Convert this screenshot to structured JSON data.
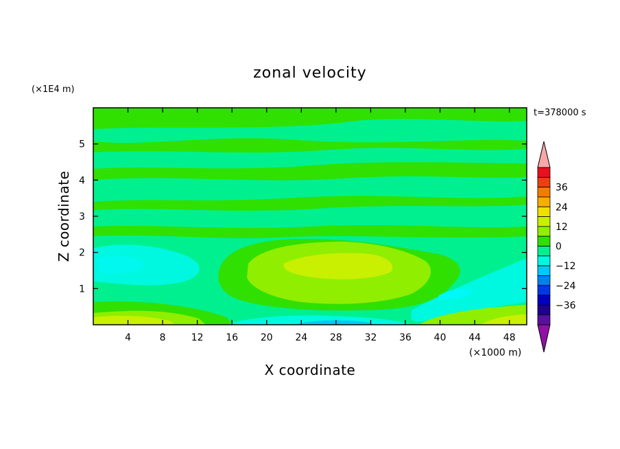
{
  "chart_data": {
    "type": "contour",
    "title": "zonal velocity",
    "xlabel": "X coordinate",
    "ylabel": "Z coordinate",
    "x_units": "(×1000 m)",
    "y_units": "(×1E4 m)",
    "time_label": "t=378000 s",
    "xlim": [
      0,
      50
    ],
    "ylim": [
      0,
      6
    ],
    "x_ticks": [
      4,
      8,
      12,
      16,
      20,
      24,
      28,
      32,
      36,
      40,
      44,
      48
    ],
    "y_ticks": [
      1,
      2,
      3,
      4,
      5
    ],
    "colorbar": {
      "tick_labels": [
        "36",
        "24",
        "12",
        "0",
        "−12",
        "−24",
        "−36"
      ],
      "tick_values": [
        36,
        24,
        12,
        0,
        -12,
        -24,
        -36
      ],
      "levels": [
        42,
        36,
        30,
        24,
        18,
        12,
        6,
        0,
        -6,
        -12,
        -18,
        -24,
        -30,
        -36
      ],
      "colors": [
        "#e8101e",
        "#f43c10",
        "#f87a00",
        "#f8ae00",
        "#f0e000",
        "#c8f000",
        "#90ee00",
        "#30e000",
        "#00f090",
        "#00f8e0",
        "#00c8f8",
        "#0080f8",
        "#0038e8",
        "#0000c0",
        "#200090",
        "#5a109e"
      ],
      "over_color": "#f8a8a8",
      "under_color": "#9010a8"
    }
  }
}
